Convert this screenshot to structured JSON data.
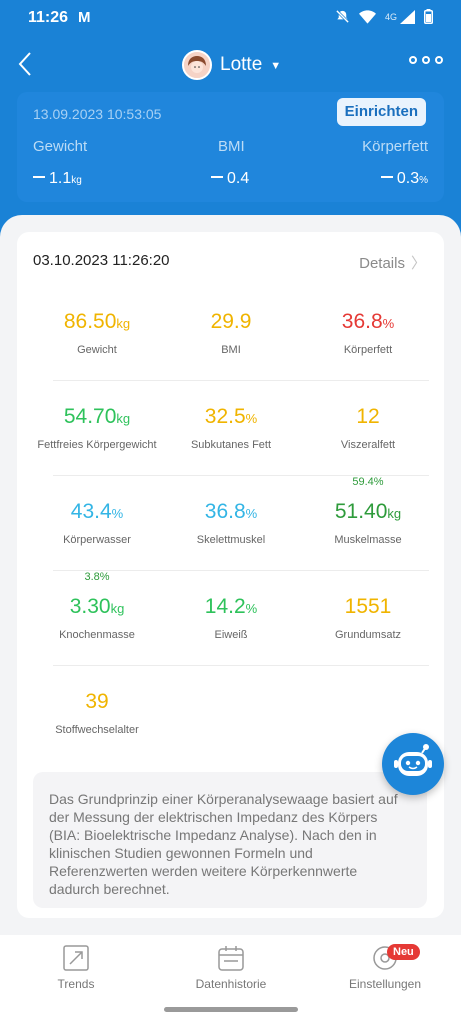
{
  "statusbar": {
    "time": "11:26",
    "network": "4G"
  },
  "header": {
    "username": "Lotte"
  },
  "compare": {
    "date": "13.09.2023 10:53:05",
    "setup_label": "Einrichten",
    "items": [
      {
        "label": "Gewicht",
        "value": "1.1",
        "unit": "kg"
      },
      {
        "label": "BMI",
        "value": "0.4",
        "unit": ""
      },
      {
        "label": "Körperfett",
        "value": "0.3",
        "unit": "%"
      }
    ]
  },
  "report": {
    "date": "03.10.2023 11:26:20",
    "details_label": "Details",
    "metrics": [
      {
        "value": "86.50",
        "unit": "kg",
        "label": "Gewicht",
        "color": "#f0b400"
      },
      {
        "value": "29.9",
        "unit": "",
        "label": "BMI",
        "color": "#f0b400"
      },
      {
        "value": "36.8",
        "unit": "%",
        "label": "Körperfett",
        "color": "#e53935"
      },
      {
        "value": "54.70",
        "unit": "kg",
        "label": "Fettfreies Körpergewicht",
        "color": "#2ec25b"
      },
      {
        "value": "32.5",
        "unit": "%",
        "label": "Subkutanes Fett",
        "color": "#f0b400"
      },
      {
        "value": "12",
        "unit": "",
        "label": "Viszeralfett",
        "color": "#f0b400"
      },
      {
        "value": "43.4",
        "unit": "%",
        "label": "Körperwasser",
        "color": "#33b5e5"
      },
      {
        "value": "36.8",
        "unit": "%",
        "label": "Skelettmuskel",
        "color": "#33b5e5"
      },
      {
        "value": "51.40",
        "unit": "kg",
        "label": "Muskelmasse",
        "color": "#2e9b3b",
        "sup": "59.4%"
      },
      {
        "value": "3.30",
        "unit": "kg",
        "label": "Knochenmasse",
        "color": "#2ec25b",
        "sup": "3.8%"
      },
      {
        "value": "14.2",
        "unit": "%",
        "label": "Eiweiß",
        "color": "#2ec25b"
      },
      {
        "value": "1551",
        "unit": "",
        "label": "Grundumsatz",
        "color": "#f0b400"
      },
      {
        "value": "39",
        "unit": "",
        "label": "Stoffwechselalter",
        "color": "#f0b400"
      }
    ],
    "info_text": "Das Grundprinzip einer Körperanalysewaage basiert auf der Messung der elektrischen Impedanz des Körpers (BIA: Bioelektrische Impedanz Analyse). Nach den in klinischen Studien gewonnen Formeln und Referenzwerten werden weitere Körperkennwerte dadurch berechnet."
  },
  "nav": {
    "trends": "Trends",
    "history": "Datenhistorie",
    "settings": "Einstellungen",
    "badge": "Neu"
  }
}
